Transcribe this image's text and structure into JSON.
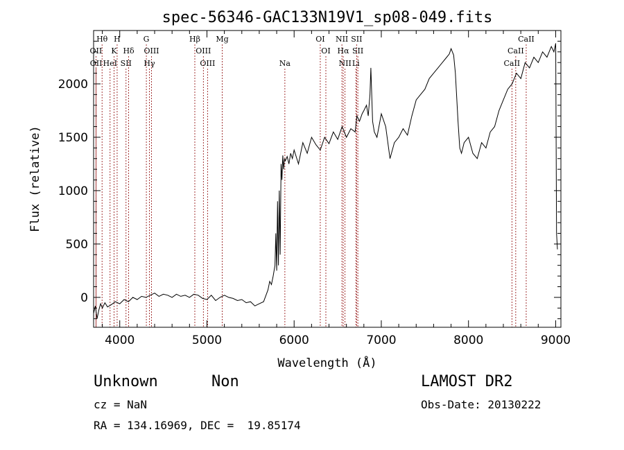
{
  "chart_data": {
    "type": "line",
    "title": "spec-56346-GAC133N19V1_sp08-049.fits",
    "xlabel": "Wavelength (Å)",
    "ylabel": "Flux (relative)",
    "xlim": [
      3700,
      9060
    ],
    "ylim": [
      -280,
      2500
    ],
    "xticks": [
      4000,
      5000,
      6000,
      7000,
      8000,
      9000
    ],
    "yticks": [
      0,
      500,
      1000,
      1500,
      2000
    ],
    "grid": false,
    "line_color": "#000000",
    "marker_color": "#8b0000",
    "series": [
      {
        "x": [
          3700,
          3720,
          3740,
          3760,
          3780,
          3800,
          3830,
          3860,
          3900,
          3950,
          4000,
          4050,
          4100,
          4150,
          4200,
          4250,
          4300,
          4350,
          4400,
          4450,
          4500,
          4550,
          4600,
          4650,
          4700,
          4750,
          4800,
          4850,
          4900,
          4950,
          5000,
          5050,
          5100,
          5150,
          5200,
          5250,
          5300,
          5350,
          5400,
          5450,
          5500,
          5550,
          5600,
          5650,
          5700,
          5720,
          5740,
          5760,
          5780,
          5790,
          5800,
          5810,
          5820,
          5830,
          5840,
          5850,
          5860,
          5870,
          5880,
          5890,
          5900,
          5920,
          5940,
          5960,
          5980,
          6000,
          6050,
          6100,
          6150,
          6200,
          6250,
          6300,
          6350,
          6400,
          6450,
          6500,
          6550,
          6600,
          6650,
          6700,
          6720,
          6750,
          6780,
          6800,
          6830,
          6850,
          6870,
          6880,
          6900,
          6920,
          6950,
          7000,
          7050,
          7100,
          7150,
          7200,
          7250,
          7300,
          7350,
          7400,
          7450,
          7500,
          7550,
          7600,
          7650,
          7700,
          7750,
          7780,
          7800,
          7830,
          7850,
          7880,
          7900,
          7920,
          7950,
          8000,
          8050,
          8100,
          8150,
          8200,
          8250,
          8300,
          8350,
          8400,
          8450,
          8500,
          8550,
          8600,
          8650,
          8700,
          8750,
          8800,
          8850,
          8900,
          8950,
          8980,
          9000,
          9010,
          9020
        ],
        "y": [
          -150,
          -80,
          -200,
          -120,
          -60,
          -100,
          -50,
          -90,
          -70,
          -40,
          -60,
          -20,
          -40,
          0,
          -20,
          10,
          0,
          20,
          40,
          10,
          30,
          20,
          0,
          30,
          10,
          20,
          0,
          30,
          20,
          -10,
          -20,
          20,
          -30,
          0,
          20,
          0,
          -10,
          -30,
          -20,
          -50,
          -40,
          -80,
          -60,
          -40,
          70,
          150,
          120,
          200,
          300,
          600,
          250,
          900,
          300,
          1000,
          400,
          1250,
          1100,
          1330,
          1200,
          1300,
          1280,
          1320,
          1250,
          1350,
          1300,
          1380,
          1250,
          1450,
          1350,
          1500,
          1430,
          1380,
          1500,
          1440,
          1550,
          1480,
          1600,
          1500,
          1580,
          1550,
          1700,
          1650,
          1720,
          1750,
          1800,
          1700,
          1900,
          2150,
          1650,
          1550,
          1500,
          1720,
          1600,
          1300,
          1450,
          1500,
          1580,
          1520,
          1700,
          1850,
          1900,
          1950,
          2050,
          2100,
          2150,
          2200,
          2250,
          2280,
          2330,
          2270,
          2100,
          1650,
          1400,
          1350,
          1450,
          1500,
          1350,
          1300,
          1450,
          1400,
          1550,
          1600,
          1750,
          1850,
          1950,
          2000,
          2100,
          2050,
          2200,
          2150,
          2250,
          2200,
          2300,
          2250,
          2350,
          2300,
          2380,
          600,
          450
        ]
      }
    ],
    "spectral_lines": [
      {
        "row": 0,
        "name": "Hθ",
        "wl": 3797
      },
      {
        "row": 1,
        "name": "OII",
        "wl": 3727
      },
      {
        "row": 2,
        "name": "OII",
        "wl": 3729
      },
      {
        "row": 0,
        "name": "H",
        "wl": 3970
      },
      {
        "row": 1,
        "name": "K",
        "wl": 3934
      },
      {
        "row": 2,
        "name": "HeI",
        "wl": 3889
      },
      {
        "row": 2,
        "name": "SII",
        "wl": 4072
      },
      {
        "row": 1,
        "name": "Hδ",
        "wl": 4102
      },
      {
        "row": 0,
        "name": "G",
        "wl": 4305
      },
      {
        "row": 1,
        "name": "OIII",
        "wl": 4364
      },
      {
        "row": 2,
        "name": "Hγ",
        "wl": 4340
      },
      {
        "row": 0,
        "name": "Hβ",
        "wl": 4861
      },
      {
        "row": 1,
        "name": "OIII",
        "wl": 4959
      },
      {
        "row": 2,
        "name": "OIII",
        "wl": 5007
      },
      {
        "row": 0,
        "name": "Mg",
        "wl": 5175
      },
      {
        "row": 2,
        "name": "Na",
        "wl": 5894
      },
      {
        "row": 0,
        "name": "OI",
        "wl": 6300
      },
      {
        "row": 1,
        "name": "OI",
        "wl": 6364
      },
      {
        "row": 0,
        "name": "NII",
        "wl": 6548
      },
      {
        "row": 1,
        "name": "Hα",
        "wl": 6563
      },
      {
        "row": 2,
        "name": "NII",
        "wl": 6584
      },
      {
        "row": 0,
        "name": "SII",
        "wl": 6717
      },
      {
        "row": 1,
        "name": "SII",
        "wl": 6731
      },
      {
        "row": 2,
        "name": "Li",
        "wl": 6708
      },
      {
        "row": 0,
        "name": "CaII",
        "wl": 8662
      },
      {
        "row": 1,
        "name": "CaII",
        "wl": 8542
      },
      {
        "row": 2,
        "name": "CaII",
        "wl": 8498
      }
    ]
  },
  "info": {
    "object_class": "Unknown",
    "object_subclass": "Non",
    "survey": "LAMOST DR2",
    "cz": "cz = NaN",
    "obs_date": "Obs-Date: 20130222",
    "coords": "RA = 134.16969, DEC =  19.85174"
  }
}
